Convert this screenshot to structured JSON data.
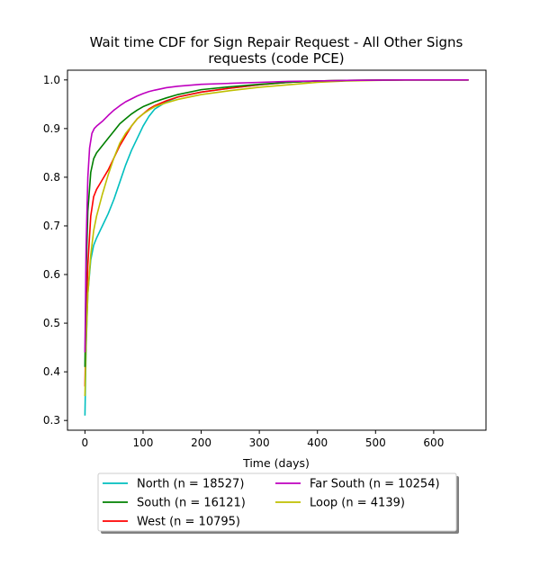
{
  "chart_data": {
    "type": "line",
    "title_lines": [
      "Wait time CDF for Sign Repair Request - All Other Signs",
      "requests (code PCE)"
    ],
    "xlabel": "Time (days)",
    "ylabel": "",
    "xlim": [
      -30,
      690
    ],
    "ylim": [
      0.28,
      1.02
    ],
    "xticks": [
      0,
      100,
      200,
      300,
      400,
      500,
      600
    ],
    "yticks": [
      0.3,
      0.4,
      0.5,
      0.6,
      0.7,
      0.8,
      0.9,
      1.0
    ],
    "ytick_labels": [
      "0.3",
      "0.4",
      "0.5",
      "0.6",
      "0.7",
      "0.8",
      "0.9",
      "1.0"
    ],
    "grid": false,
    "legend_placement": "below-plot",
    "series": [
      {
        "name": "North (n = 18527)",
        "color": "#00bfbf",
        "x": [
          0,
          2,
          5,
          10,
          15,
          20,
          30,
          40,
          50,
          60,
          70,
          80,
          90,
          100,
          110,
          120,
          140,
          160,
          200,
          250,
          300,
          350,
          400,
          450,
          500,
          550,
          600,
          660
        ],
        "y": [
          0.31,
          0.45,
          0.56,
          0.63,
          0.66,
          0.675,
          0.7,
          0.725,
          0.755,
          0.79,
          0.825,
          0.855,
          0.88,
          0.905,
          0.925,
          0.94,
          0.955,
          0.965,
          0.975,
          0.983,
          0.99,
          0.995,
          0.998,
          0.999,
          0.9995,
          1.0,
          1.0,
          1.0
        ]
      },
      {
        "name": "West (n = 10795)",
        "color": "#ff0000",
        "x": [
          0,
          2,
          5,
          10,
          15,
          20,
          30,
          40,
          50,
          60,
          70,
          80,
          90,
          100,
          110,
          120,
          140,
          160,
          200,
          250,
          300,
          350,
          400,
          450,
          500,
          550,
          600,
          660
        ],
        "y": [
          0.37,
          0.5,
          0.62,
          0.72,
          0.76,
          0.775,
          0.795,
          0.815,
          0.84,
          0.865,
          0.885,
          0.905,
          0.92,
          0.93,
          0.94,
          0.947,
          0.957,
          0.965,
          0.975,
          0.983,
          0.99,
          0.995,
          0.998,
          0.999,
          0.9995,
          1.0,
          1.0,
          1.0
        ]
      },
      {
        "name": "Loop (n = 4139)",
        "color": "#bfbf00",
        "x": [
          0,
          2,
          5,
          10,
          15,
          20,
          30,
          40,
          50,
          60,
          70,
          80,
          90,
          100,
          110,
          120,
          140,
          160,
          200,
          250,
          300,
          350,
          400,
          450,
          500,
          550,
          600,
          660
        ],
        "y": [
          0.35,
          0.46,
          0.56,
          0.64,
          0.69,
          0.72,
          0.765,
          0.805,
          0.84,
          0.87,
          0.89,
          0.905,
          0.92,
          0.93,
          0.938,
          0.945,
          0.953,
          0.96,
          0.97,
          0.978,
          0.985,
          0.99,
          0.995,
          0.998,
          0.999,
          1.0,
          1.0,
          1.0
        ]
      },
      {
        "name": "South (n = 16121)",
        "color": "#008000",
        "x": [
          0,
          2,
          5,
          10,
          15,
          20,
          30,
          40,
          50,
          60,
          70,
          80,
          90,
          100,
          110,
          120,
          140,
          160,
          200,
          250,
          300,
          350,
          400,
          450,
          500,
          550,
          600,
          660
        ],
        "y": [
          0.41,
          0.6,
          0.73,
          0.81,
          0.838,
          0.85,
          0.865,
          0.88,
          0.895,
          0.91,
          0.92,
          0.93,
          0.938,
          0.945,
          0.95,
          0.955,
          0.963,
          0.97,
          0.98,
          0.986,
          0.991,
          0.995,
          0.998,
          0.999,
          0.9995,
          1.0,
          1.0,
          1.0
        ]
      },
      {
        "name": "Far South (n = 10254)",
        "color": "#bf00bf",
        "x": [
          0,
          2,
          5,
          8,
          12,
          16,
          20,
          30,
          40,
          50,
          60,
          70,
          80,
          90,
          100,
          110,
          120,
          140,
          160,
          200,
          250,
          300,
          350,
          400,
          450,
          500,
          550,
          600,
          660
        ],
        "y": [
          0.44,
          0.66,
          0.8,
          0.86,
          0.89,
          0.9,
          0.905,
          0.915,
          0.927,
          0.938,
          0.947,
          0.955,
          0.961,
          0.967,
          0.972,
          0.976,
          0.979,
          0.984,
          0.987,
          0.991,
          0.993,
          0.995,
          0.997,
          0.998,
          0.999,
          0.9995,
          1.0,
          1.0,
          1.0
        ]
      }
    ],
    "legend_order": [
      0,
      3,
      1,
      4,
      2
    ]
  }
}
